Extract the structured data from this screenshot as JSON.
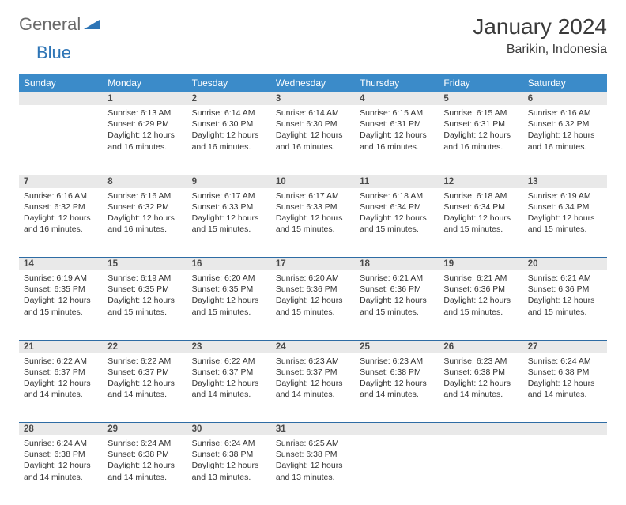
{
  "logo": {
    "word1": "General",
    "word2": "Blue"
  },
  "title": "January 2024",
  "location": "Barikin, Indonesia",
  "colors": {
    "header_bg": "#3b8bc9",
    "header_text": "#ffffff",
    "daynum_bg": "#e9e9e9",
    "row_border": "#2e6ca4",
    "text": "#333333",
    "logo_gray": "#6a6a6a",
    "logo_blue": "#2e75b6"
  },
  "weekdays": [
    "Sunday",
    "Monday",
    "Tuesday",
    "Wednesday",
    "Thursday",
    "Friday",
    "Saturday"
  ],
  "weeks": [
    {
      "nums": [
        "",
        "1",
        "2",
        "3",
        "4",
        "5",
        "6"
      ],
      "cells": [
        null,
        {
          "sunrise": "Sunrise: 6:13 AM",
          "sunset": "Sunset: 6:29 PM",
          "day1": "Daylight: 12 hours",
          "day2": "and 16 minutes."
        },
        {
          "sunrise": "Sunrise: 6:14 AM",
          "sunset": "Sunset: 6:30 PM",
          "day1": "Daylight: 12 hours",
          "day2": "and 16 minutes."
        },
        {
          "sunrise": "Sunrise: 6:14 AM",
          "sunset": "Sunset: 6:30 PM",
          "day1": "Daylight: 12 hours",
          "day2": "and 16 minutes."
        },
        {
          "sunrise": "Sunrise: 6:15 AM",
          "sunset": "Sunset: 6:31 PM",
          "day1": "Daylight: 12 hours",
          "day2": "and 16 minutes."
        },
        {
          "sunrise": "Sunrise: 6:15 AM",
          "sunset": "Sunset: 6:31 PM",
          "day1": "Daylight: 12 hours",
          "day2": "and 16 minutes."
        },
        {
          "sunrise": "Sunrise: 6:16 AM",
          "sunset": "Sunset: 6:32 PM",
          "day1": "Daylight: 12 hours",
          "day2": "and 16 minutes."
        }
      ]
    },
    {
      "nums": [
        "7",
        "8",
        "9",
        "10",
        "11",
        "12",
        "13"
      ],
      "cells": [
        {
          "sunrise": "Sunrise: 6:16 AM",
          "sunset": "Sunset: 6:32 PM",
          "day1": "Daylight: 12 hours",
          "day2": "and 16 minutes."
        },
        {
          "sunrise": "Sunrise: 6:16 AM",
          "sunset": "Sunset: 6:32 PM",
          "day1": "Daylight: 12 hours",
          "day2": "and 16 minutes."
        },
        {
          "sunrise": "Sunrise: 6:17 AM",
          "sunset": "Sunset: 6:33 PM",
          "day1": "Daylight: 12 hours",
          "day2": "and 15 minutes."
        },
        {
          "sunrise": "Sunrise: 6:17 AM",
          "sunset": "Sunset: 6:33 PM",
          "day1": "Daylight: 12 hours",
          "day2": "and 15 minutes."
        },
        {
          "sunrise": "Sunrise: 6:18 AM",
          "sunset": "Sunset: 6:34 PM",
          "day1": "Daylight: 12 hours",
          "day2": "and 15 minutes."
        },
        {
          "sunrise": "Sunrise: 6:18 AM",
          "sunset": "Sunset: 6:34 PM",
          "day1": "Daylight: 12 hours",
          "day2": "and 15 minutes."
        },
        {
          "sunrise": "Sunrise: 6:19 AM",
          "sunset": "Sunset: 6:34 PM",
          "day1": "Daylight: 12 hours",
          "day2": "and 15 minutes."
        }
      ]
    },
    {
      "nums": [
        "14",
        "15",
        "16",
        "17",
        "18",
        "19",
        "20"
      ],
      "cells": [
        {
          "sunrise": "Sunrise: 6:19 AM",
          "sunset": "Sunset: 6:35 PM",
          "day1": "Daylight: 12 hours",
          "day2": "and 15 minutes."
        },
        {
          "sunrise": "Sunrise: 6:19 AM",
          "sunset": "Sunset: 6:35 PM",
          "day1": "Daylight: 12 hours",
          "day2": "and 15 minutes."
        },
        {
          "sunrise": "Sunrise: 6:20 AM",
          "sunset": "Sunset: 6:35 PM",
          "day1": "Daylight: 12 hours",
          "day2": "and 15 minutes."
        },
        {
          "sunrise": "Sunrise: 6:20 AM",
          "sunset": "Sunset: 6:36 PM",
          "day1": "Daylight: 12 hours",
          "day2": "and 15 minutes."
        },
        {
          "sunrise": "Sunrise: 6:21 AM",
          "sunset": "Sunset: 6:36 PM",
          "day1": "Daylight: 12 hours",
          "day2": "and 15 minutes."
        },
        {
          "sunrise": "Sunrise: 6:21 AM",
          "sunset": "Sunset: 6:36 PM",
          "day1": "Daylight: 12 hours",
          "day2": "and 15 minutes."
        },
        {
          "sunrise": "Sunrise: 6:21 AM",
          "sunset": "Sunset: 6:36 PM",
          "day1": "Daylight: 12 hours",
          "day2": "and 15 minutes."
        }
      ]
    },
    {
      "nums": [
        "21",
        "22",
        "23",
        "24",
        "25",
        "26",
        "27"
      ],
      "cells": [
        {
          "sunrise": "Sunrise: 6:22 AM",
          "sunset": "Sunset: 6:37 PM",
          "day1": "Daylight: 12 hours",
          "day2": "and 14 minutes."
        },
        {
          "sunrise": "Sunrise: 6:22 AM",
          "sunset": "Sunset: 6:37 PM",
          "day1": "Daylight: 12 hours",
          "day2": "and 14 minutes."
        },
        {
          "sunrise": "Sunrise: 6:22 AM",
          "sunset": "Sunset: 6:37 PM",
          "day1": "Daylight: 12 hours",
          "day2": "and 14 minutes."
        },
        {
          "sunrise": "Sunrise: 6:23 AM",
          "sunset": "Sunset: 6:37 PM",
          "day1": "Daylight: 12 hours",
          "day2": "and 14 minutes."
        },
        {
          "sunrise": "Sunrise: 6:23 AM",
          "sunset": "Sunset: 6:38 PM",
          "day1": "Daylight: 12 hours",
          "day2": "and 14 minutes."
        },
        {
          "sunrise": "Sunrise: 6:23 AM",
          "sunset": "Sunset: 6:38 PM",
          "day1": "Daylight: 12 hours",
          "day2": "and 14 minutes."
        },
        {
          "sunrise": "Sunrise: 6:24 AM",
          "sunset": "Sunset: 6:38 PM",
          "day1": "Daylight: 12 hours",
          "day2": "and 14 minutes."
        }
      ]
    },
    {
      "nums": [
        "28",
        "29",
        "30",
        "31",
        "",
        "",
        ""
      ],
      "cells": [
        {
          "sunrise": "Sunrise: 6:24 AM",
          "sunset": "Sunset: 6:38 PM",
          "day1": "Daylight: 12 hours",
          "day2": "and 14 minutes."
        },
        {
          "sunrise": "Sunrise: 6:24 AM",
          "sunset": "Sunset: 6:38 PM",
          "day1": "Daylight: 12 hours",
          "day2": "and 14 minutes."
        },
        {
          "sunrise": "Sunrise: 6:24 AM",
          "sunset": "Sunset: 6:38 PM",
          "day1": "Daylight: 12 hours",
          "day2": "and 13 minutes."
        },
        {
          "sunrise": "Sunrise: 6:25 AM",
          "sunset": "Sunset: 6:38 PM",
          "day1": "Daylight: 12 hours",
          "day2": "and 13 minutes."
        },
        null,
        null,
        null
      ]
    }
  ]
}
